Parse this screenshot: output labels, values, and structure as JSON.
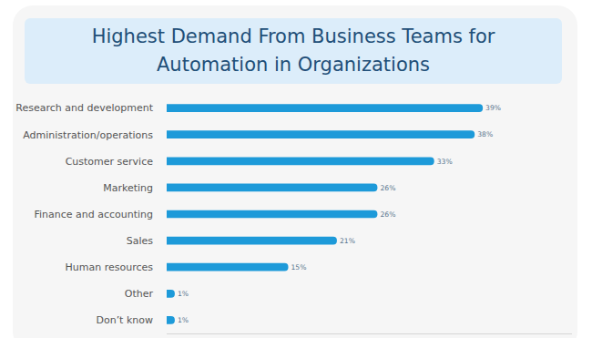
{
  "chart_data": {
    "type": "bar",
    "orientation": "horizontal",
    "title": "Highest Demand From Business Teams for Automation in Organizations",
    "categories": [
      "Research and development",
      "Administration/operations",
      "Customer service",
      "Marketing",
      "Finance and accounting",
      "Sales",
      "Human resources",
      "Other",
      "Don’t know"
    ],
    "values": [
      39,
      38,
      33,
      26,
      26,
      21,
      15,
      1,
      1
    ],
    "value_labels": [
      "39%",
      "38%",
      "33%",
      "26%",
      "26%",
      "21%",
      "15%",
      "1%",
      "1%"
    ],
    "color": "#1d9ad9",
    "xlim": [
      0,
      50
    ],
    "xticks": [],
    "data_labels": true,
    "tick_labels": "y",
    "grid": false
  }
}
